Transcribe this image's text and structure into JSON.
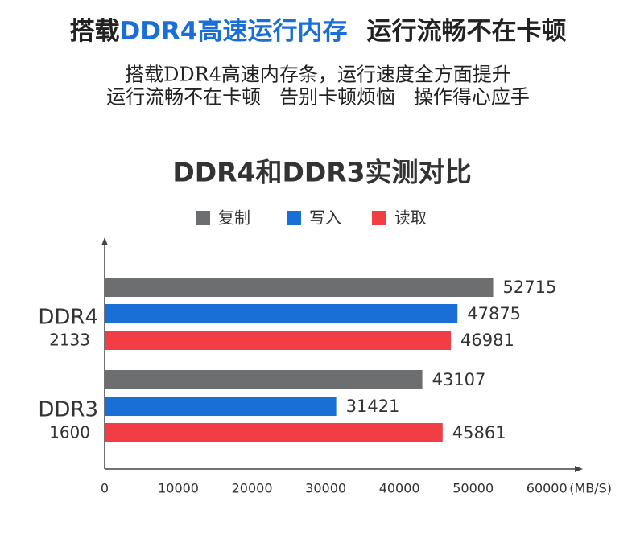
{
  "header": {
    "title_parts": [
      "搭载",
      "DDR4高速运行内存",
      "运行流畅不在卡顿"
    ],
    "subtitle_lines": [
      "搭载DDR4高速内存条，运行速度全方面提升",
      "运行流畅不在卡顿   告别卡顿烦恼   操作得心应手"
    ]
  },
  "chart_data": {
    "type": "hbar",
    "title": "DDR4和DDR3实测对比",
    "categories": [
      "DDR4",
      "DDR3"
    ],
    "category_sublabels": [
      "2133",
      "1600"
    ],
    "series": [
      {
        "name": "复制",
        "color": "#6d6e70",
        "values": [
          52715,
          43107
        ]
      },
      {
        "name": "写入",
        "color": "#1a6fd6",
        "values": [
          47875,
          31421
        ]
      },
      {
        "name": "读取",
        "color": "#f23d45",
        "values": [
          46981,
          45861
        ]
      }
    ],
    "xlim": [
      0,
      65000
    ],
    "xticks": [
      0,
      10000,
      20000,
      30000,
      40000,
      50000,
      60000
    ],
    "x_unit": "(MB/S)",
    "grid": false,
    "legend": "top"
  }
}
